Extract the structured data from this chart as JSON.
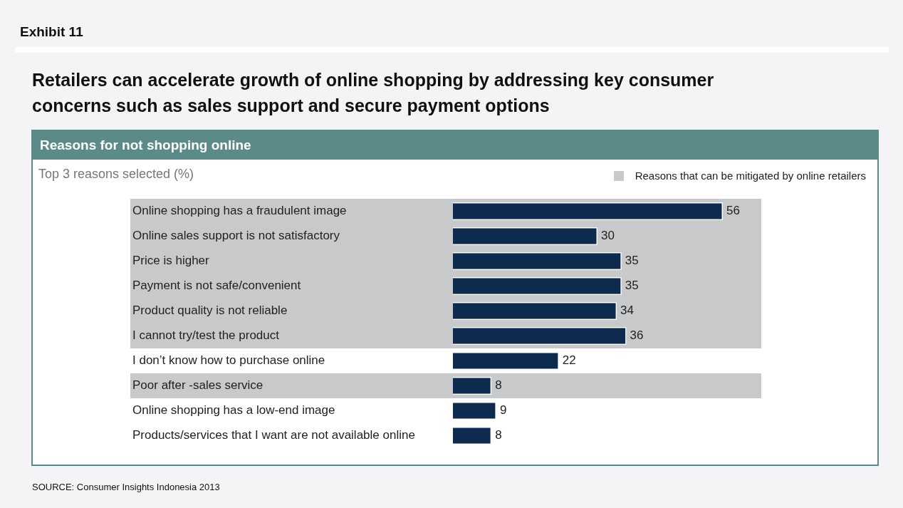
{
  "chart_data": {
    "type": "bar",
    "orientation": "horizontal",
    "title": "Retailers can accelerate growth of online shopping by addressing key  consumer concerns such as sales support and secure payment options",
    "subtitle": "Reasons for not shopping online",
    "xlabel": "Top 3 reasons selected (%)",
    "categories": [
      "Online shopping has a fraudulent image",
      "Online sales support is not satisfactory",
      "Price is higher",
      "Payment is not safe/convenient",
      "Product quality is not reliable",
      "I cannot try/test the product",
      "I don’t know how to purchase online",
      "Poor after -sales service",
      "Online shopping has a low-end image",
      "Products/services that I want are not available online"
    ],
    "values": [
      56,
      30,
      35,
      35,
      34,
      36,
      22,
      8,
      9,
      8
    ],
    "color": "#0d2b4e",
    "data_labels": true,
    "bands": [
      {
        "axis": "y",
        "from": "Online shopping has a fraudulent image",
        "to": "I cannot try/test the product",
        "label": "Reasons that can be mitigated by online retailers",
        "color": "#c8c9cb"
      },
      {
        "axis": "y",
        "from": "Poor after -sales service",
        "to": "Poor after -sales service",
        "color": "#c8c9cb"
      }
    ],
    "legend": "top right",
    "annotations": [
      "Exhibit 11",
      "SOURCE: Consumer Insights Indonesia 2013"
    ]
  }
}
